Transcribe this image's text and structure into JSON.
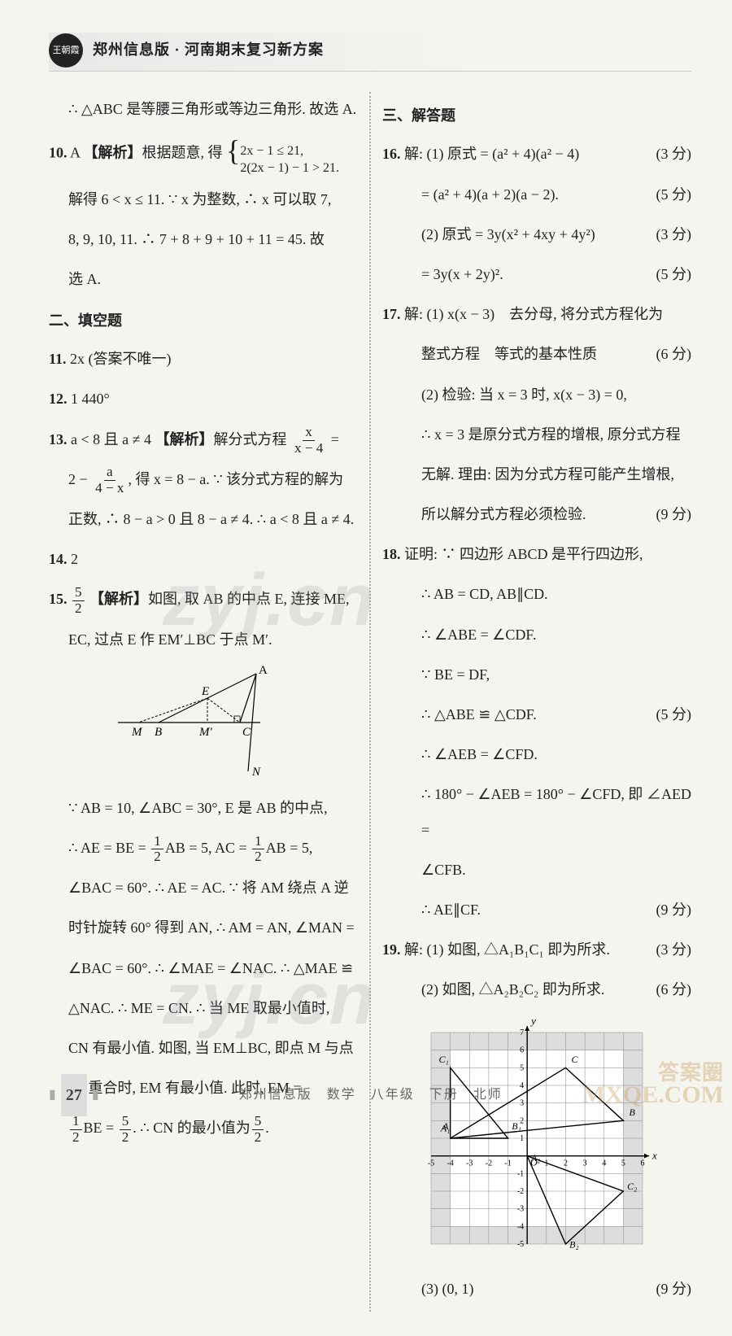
{
  "header": {
    "logo_text": "王朝霞",
    "title": "郑州信息版 · 河南期末复习新方案"
  },
  "left": {
    "p_conclusion": "∴ △ABC 是等腰三角形或等边三角形. 故选 A.",
    "q10": {
      "num": "10.",
      "answer": "A",
      "label": "【解析】",
      "text1": "根据题意, 得",
      "sys1": "2x − 1 ≤ 21,",
      "sys2": "2(2x − 1) − 1 > 21.",
      "line2": "解得 6 < x ≤ 11. ∵ x 为整数, ∴ x 可以取 7,",
      "line3": "8, 9, 10, 11. ∴ 7 + 8 + 9 + 10 + 11 = 45. 故",
      "line4": "选 A."
    },
    "section2": "二、填空题",
    "q11": {
      "num": "11.",
      "text": "2x (答案不唯一)"
    },
    "q12": {
      "num": "12.",
      "text": "1 440°"
    },
    "q13": {
      "num": "13.",
      "pre": "a < 8 且 a ≠ 4",
      "label": "【解析】",
      "text1": "解分式方程",
      "frac1_top": "x",
      "frac1_bot": "x − 4",
      "eq": " =",
      "line2a": "2 − ",
      "frac2_top": "a",
      "frac2_bot": "4 − x",
      "line2b": ", 得 x = 8 − a. ∵ 该分式方程的解为",
      "line3": "正数, ∴ 8 − a > 0 且 8 − a ≠ 4. ∴ a < 8 且 a ≠ 4."
    },
    "q14": {
      "num": "14.",
      "text": "2"
    },
    "q15": {
      "num": "15.",
      "ans_top": "5",
      "ans_bot": "2",
      "label": "【解析】",
      "text1": "如图, 取 AB 的中点 E, 连接 ME,",
      "line2": "EC, 过点 E 作 EM′⊥BC 于点 M′.",
      "diagram": {
        "labels": {
          "A": "A",
          "E": "E",
          "M": "M",
          "B": "B",
          "Mp": "M′",
          "C": "C",
          "N": "N"
        }
      },
      "para": [
        "∵ AB = 10, ∠ABC = 30°, E 是 AB 的中点,",
        "∴ AE = BE = ",
        "AB = 5, AC = ",
        "AB = 5,",
        "∠BAC = 60°. ∴ AE = AC. ∵ 将 AM 绕点 A 逆",
        "时针旋转 60° 得到 AN, ∴ AM = AN, ∠MAN =",
        "∠BAC = 60°. ∴ ∠MAE = ∠NAC. ∴ △MAE ≌",
        "△NAC. ∴ ME = CN. ∴ 当 ME 取最小值时,",
        "CN 有最小值. 如图, 当 EM⊥BC, 即点 M 与点",
        "M′ 重合时, EM 有最小值. 此时, EM =",
        "BE = ",
        ". ∴ CN 的最小值为",
        "."
      ],
      "half_top": "1",
      "half_bot": "2",
      "five2_top": "5",
      "five2_bot": "2"
    }
  },
  "right": {
    "section3": "三、解答题",
    "q16": {
      "num": "16.",
      "l1": "解: (1) 原式 = (a² + 4)(a² − 4)",
      "s1": "(3 分)",
      "l2": "= (a² + 4)(a + 2)(a − 2).",
      "s2": "(5 分)",
      "l3": "(2) 原式 = 3y(x² + 4xy + 4y²)",
      "s3": "(3 分)",
      "l4": "= 3y(x + 2y)².",
      "s4": "(5 分)"
    },
    "q17": {
      "num": "17.",
      "l1": "解: (1) x(x − 3)　去分母, 将分式方程化为",
      "l2": "整式方程　等式的基本性质",
      "s2": "(6 分)",
      "l3": "(2) 检验: 当 x = 3 时, x(x − 3) = 0,",
      "l4": "∴ x = 3 是原分式方程的增根, 原分式方程",
      "l5": "无解. 理由: 因为分式方程可能产生增根,",
      "l6": "所以解分式方程必须检验.",
      "s6": "(9 分)"
    },
    "q18": {
      "num": "18.",
      "l1": "证明: ∵ 四边形 ABCD 是平行四边形,",
      "l2": "∴ AB = CD, AB∥CD.",
      "l3": "∴ ∠ABE = ∠CDF.",
      "l4": "∵ BE = DF,",
      "l5": "∴ △ABE ≌ △CDF.",
      "s5": "(5 分)",
      "l6": "∴ ∠AEB = ∠CFD.",
      "l7": "∴ 180° − ∠AEB = 180° − ∠CFD, 即 ∠AED =",
      "l8": "∠CFB.",
      "l9": "∴ AE∥CF.",
      "s9": "(9 分)"
    },
    "q19": {
      "num": "19.",
      "l1": "解: (1) 如图, △A₁B₁C₁ 即为所求.",
      "s1": "(3 分)",
      "l2": "(2) 如图, △A₂B₂C₂ 即为所求.",
      "s2": "(6 分)",
      "graph": {
        "x_range": [
          -5,
          6
        ],
        "y_range": [
          -5,
          7
        ],
        "shaded_x": [
          [
            -5,
            -4
          ],
          [
            5,
            6
          ]
        ],
        "shaded_y": [
          [
            -5,
            -4
          ],
          [
            6,
            7
          ]
        ],
        "points": {
          "A": [
            -4,
            1
          ],
          "B": [
            5,
            2
          ],
          "C": [
            2,
            5
          ],
          "O": [
            0,
            0
          ],
          "A1": [
            -4,
            1
          ],
          "B1": [
            -1,
            1
          ],
          "C1": [
            -4,
            5
          ],
          "A2": [
            0,
            0
          ],
          "B2": [
            2,
            -5
          ],
          "C2": [
            5,
            -2
          ]
        },
        "x_ticks": [
          -5,
          -4,
          -3,
          -2,
          -1,
          1,
          2,
          3,
          4,
          5,
          6
        ],
        "y_ticks": [
          -5,
          -4,
          -3,
          -2,
          -1,
          1,
          2,
          3,
          4,
          5,
          6,
          7
        ],
        "axis_labels": {
          "x": "x",
          "y": "y",
          "o": "O"
        }
      },
      "l3": "(3) (0, 1)",
      "s3": "(9 分)"
    }
  },
  "footer": {
    "page_num": "27",
    "text": "郑州信息版　数学　八年级　下册　北师"
  },
  "watermarks": {
    "wm": "zyj.cn",
    "corner1": "答案圈",
    "corner2": "MXQE.COM"
  }
}
